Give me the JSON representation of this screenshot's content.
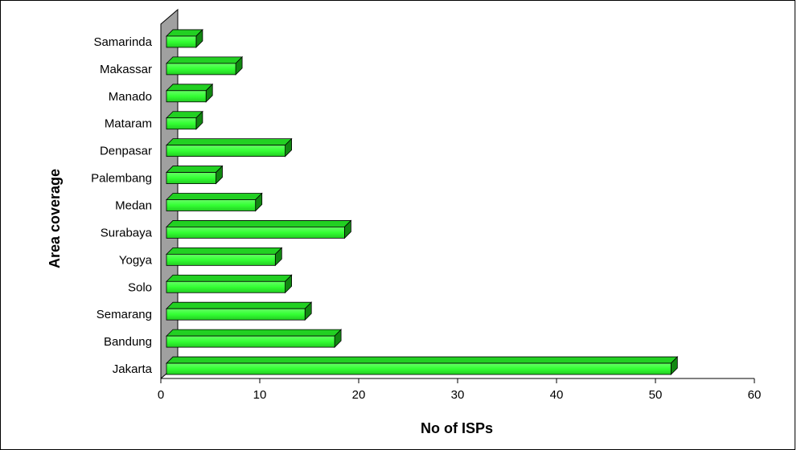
{
  "chart_data": {
    "type": "bar",
    "orientation": "horizontal",
    "style": "3d",
    "title": "",
    "xlabel": "No of ISPs",
    "ylabel": "Area coverage",
    "categories": [
      "Samarinda",
      "Makassar",
      "Manado",
      "Mataram",
      "Denpasar",
      "Palembang",
      "Medan",
      "Surabaya",
      "Yogya",
      "Solo",
      "Semarang",
      "Bandung",
      "Jakarta"
    ],
    "values": [
      3,
      7,
      4,
      3,
      12,
      5,
      9,
      18,
      11,
      12,
      14,
      17,
      51
    ],
    "xlim": [
      0,
      60
    ],
    "xticks": [
      "0",
      "10",
      "20",
      "30",
      "40",
      "50",
      "60"
    ],
    "grid": false,
    "legend": "none",
    "colors": {
      "bar_front": "#33ff33",
      "bar_top": "#22d022",
      "bar_side": "#118811",
      "wall": "#a0a0a0"
    }
  }
}
